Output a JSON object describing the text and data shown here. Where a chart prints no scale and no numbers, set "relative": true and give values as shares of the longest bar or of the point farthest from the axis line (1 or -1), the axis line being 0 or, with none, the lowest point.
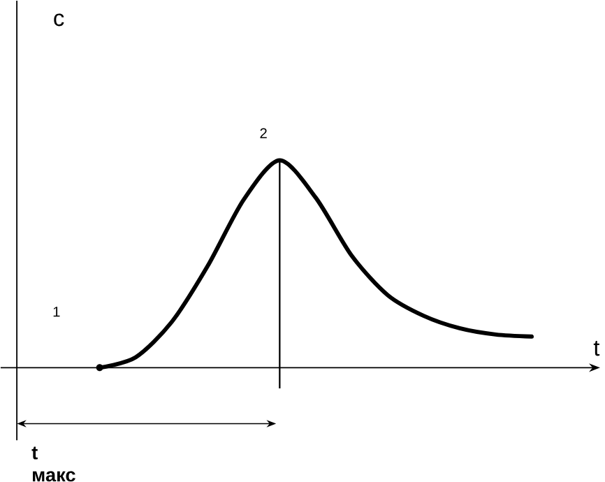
{
  "chart_data": {
    "type": "line",
    "relative": true,
    "xlabel": "t",
    "categories": [
      null,
      null,
      null,
      null,
      null,
      null,
      null,
      null,
      null,
      null,
      null,
      null,
      null,
      null,
      null,
      null
    ],
    "series": [
      {
        "color": "#000000",
        "values": [
          null,
          null,
          0,
          0.05,
          0.22,
          0.49,
          0.81,
          1,
          0.82,
          0.54,
          0.35,
          0.25,
          0.19,
          0.16,
          0.15,
          null
        ]
      }
    ],
    "annotations": [
      "c",
      "1",
      "2",
      "t макс"
    ]
  }
}
